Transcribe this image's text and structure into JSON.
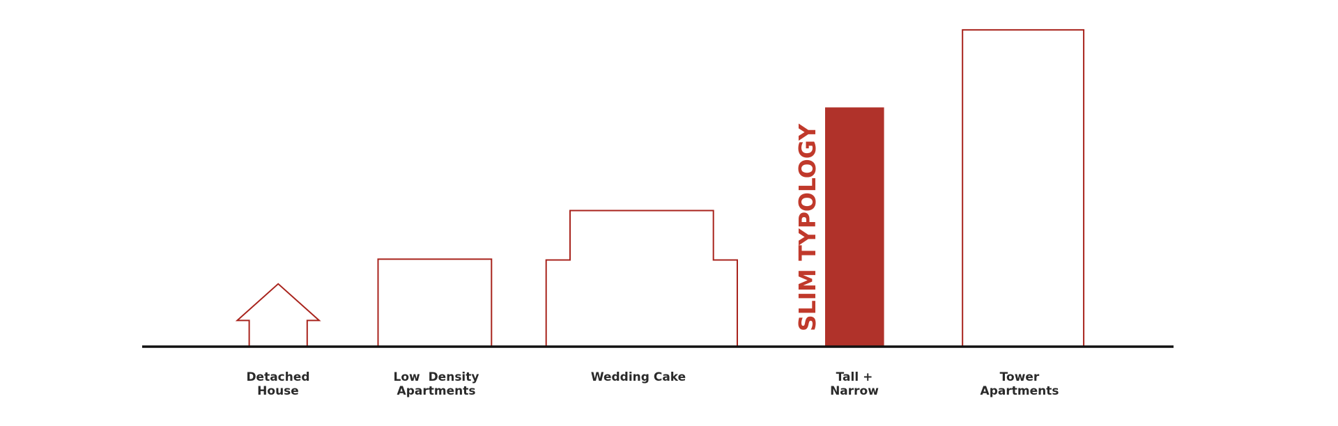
{
  "highlight_label": "SLIM TYPOLOGY",
  "typologies": [
    {
      "lines": [
        "Detached",
        "House"
      ]
    },
    {
      "lines": [
        "Low  Density",
        "Apartments"
      ]
    },
    {
      "lines": [
        "Wedding Cake"
      ]
    },
    {
      "lines": [
        "Tall +",
        "Narrow"
      ]
    },
    {
      "lines": [
        "Tower",
        "Apartments"
      ]
    }
  ]
}
